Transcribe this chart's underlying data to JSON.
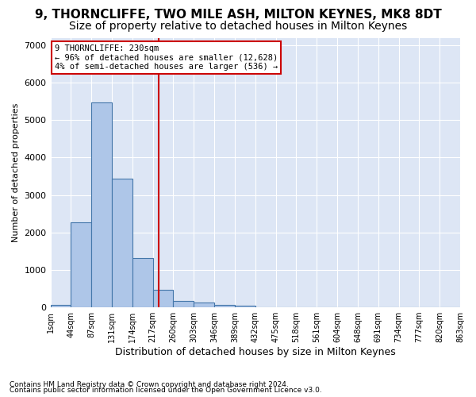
{
  "title1": "9, THORNCLIFFE, TWO MILE ASH, MILTON KEYNES, MK8 8DT",
  "title2": "Size of property relative to detached houses in Milton Keynes",
  "xlabel": "Distribution of detached houses by size in Milton Keynes",
  "ylabel": "Number of detached properties",
  "footnote1": "Contains HM Land Registry data © Crown copyright and database right 2024.",
  "footnote2": "Contains public sector information licensed under the Open Government Licence v3.0.",
  "annotation_line1": "9 THORNCLIFFE: 230sqm",
  "annotation_line2": "← 96% of detached houses are smaller (12,628)",
  "annotation_line3": "4% of semi-detached houses are larger (536) →",
  "bar_color": "#aec6e8",
  "bar_edge_color": "#4477aa",
  "vline_color": "#cc0000",
  "annotation_box_color": "#cc0000",
  "bin_labels": [
    "1sqm",
    "44sqm",
    "87sqm",
    "131sqm",
    "174sqm",
    "217sqm",
    "260sqm",
    "303sqm",
    "346sqm",
    "389sqm",
    "432sqm",
    "475sqm",
    "518sqm",
    "561sqm",
    "604sqm",
    "648sqm",
    "691sqm",
    "734sqm",
    "777sqm",
    "820sqm",
    "863sqm"
  ],
  "bar_values": [
    75,
    2280,
    5480,
    3430,
    1310,
    470,
    175,
    120,
    75,
    45,
    0,
    0,
    0,
    0,
    0,
    0,
    0,
    0,
    0,
    0
  ],
  "ylim": [
    0,
    7200
  ],
  "yticks": [
    0,
    1000,
    2000,
    3000,
    4000,
    5000,
    6000,
    7000
  ],
  "background_color": "#dde6f5",
  "grid_color": "#ffffff",
  "title1_fontsize": 11,
  "title2_fontsize": 10,
  "vline_x": 5.3
}
